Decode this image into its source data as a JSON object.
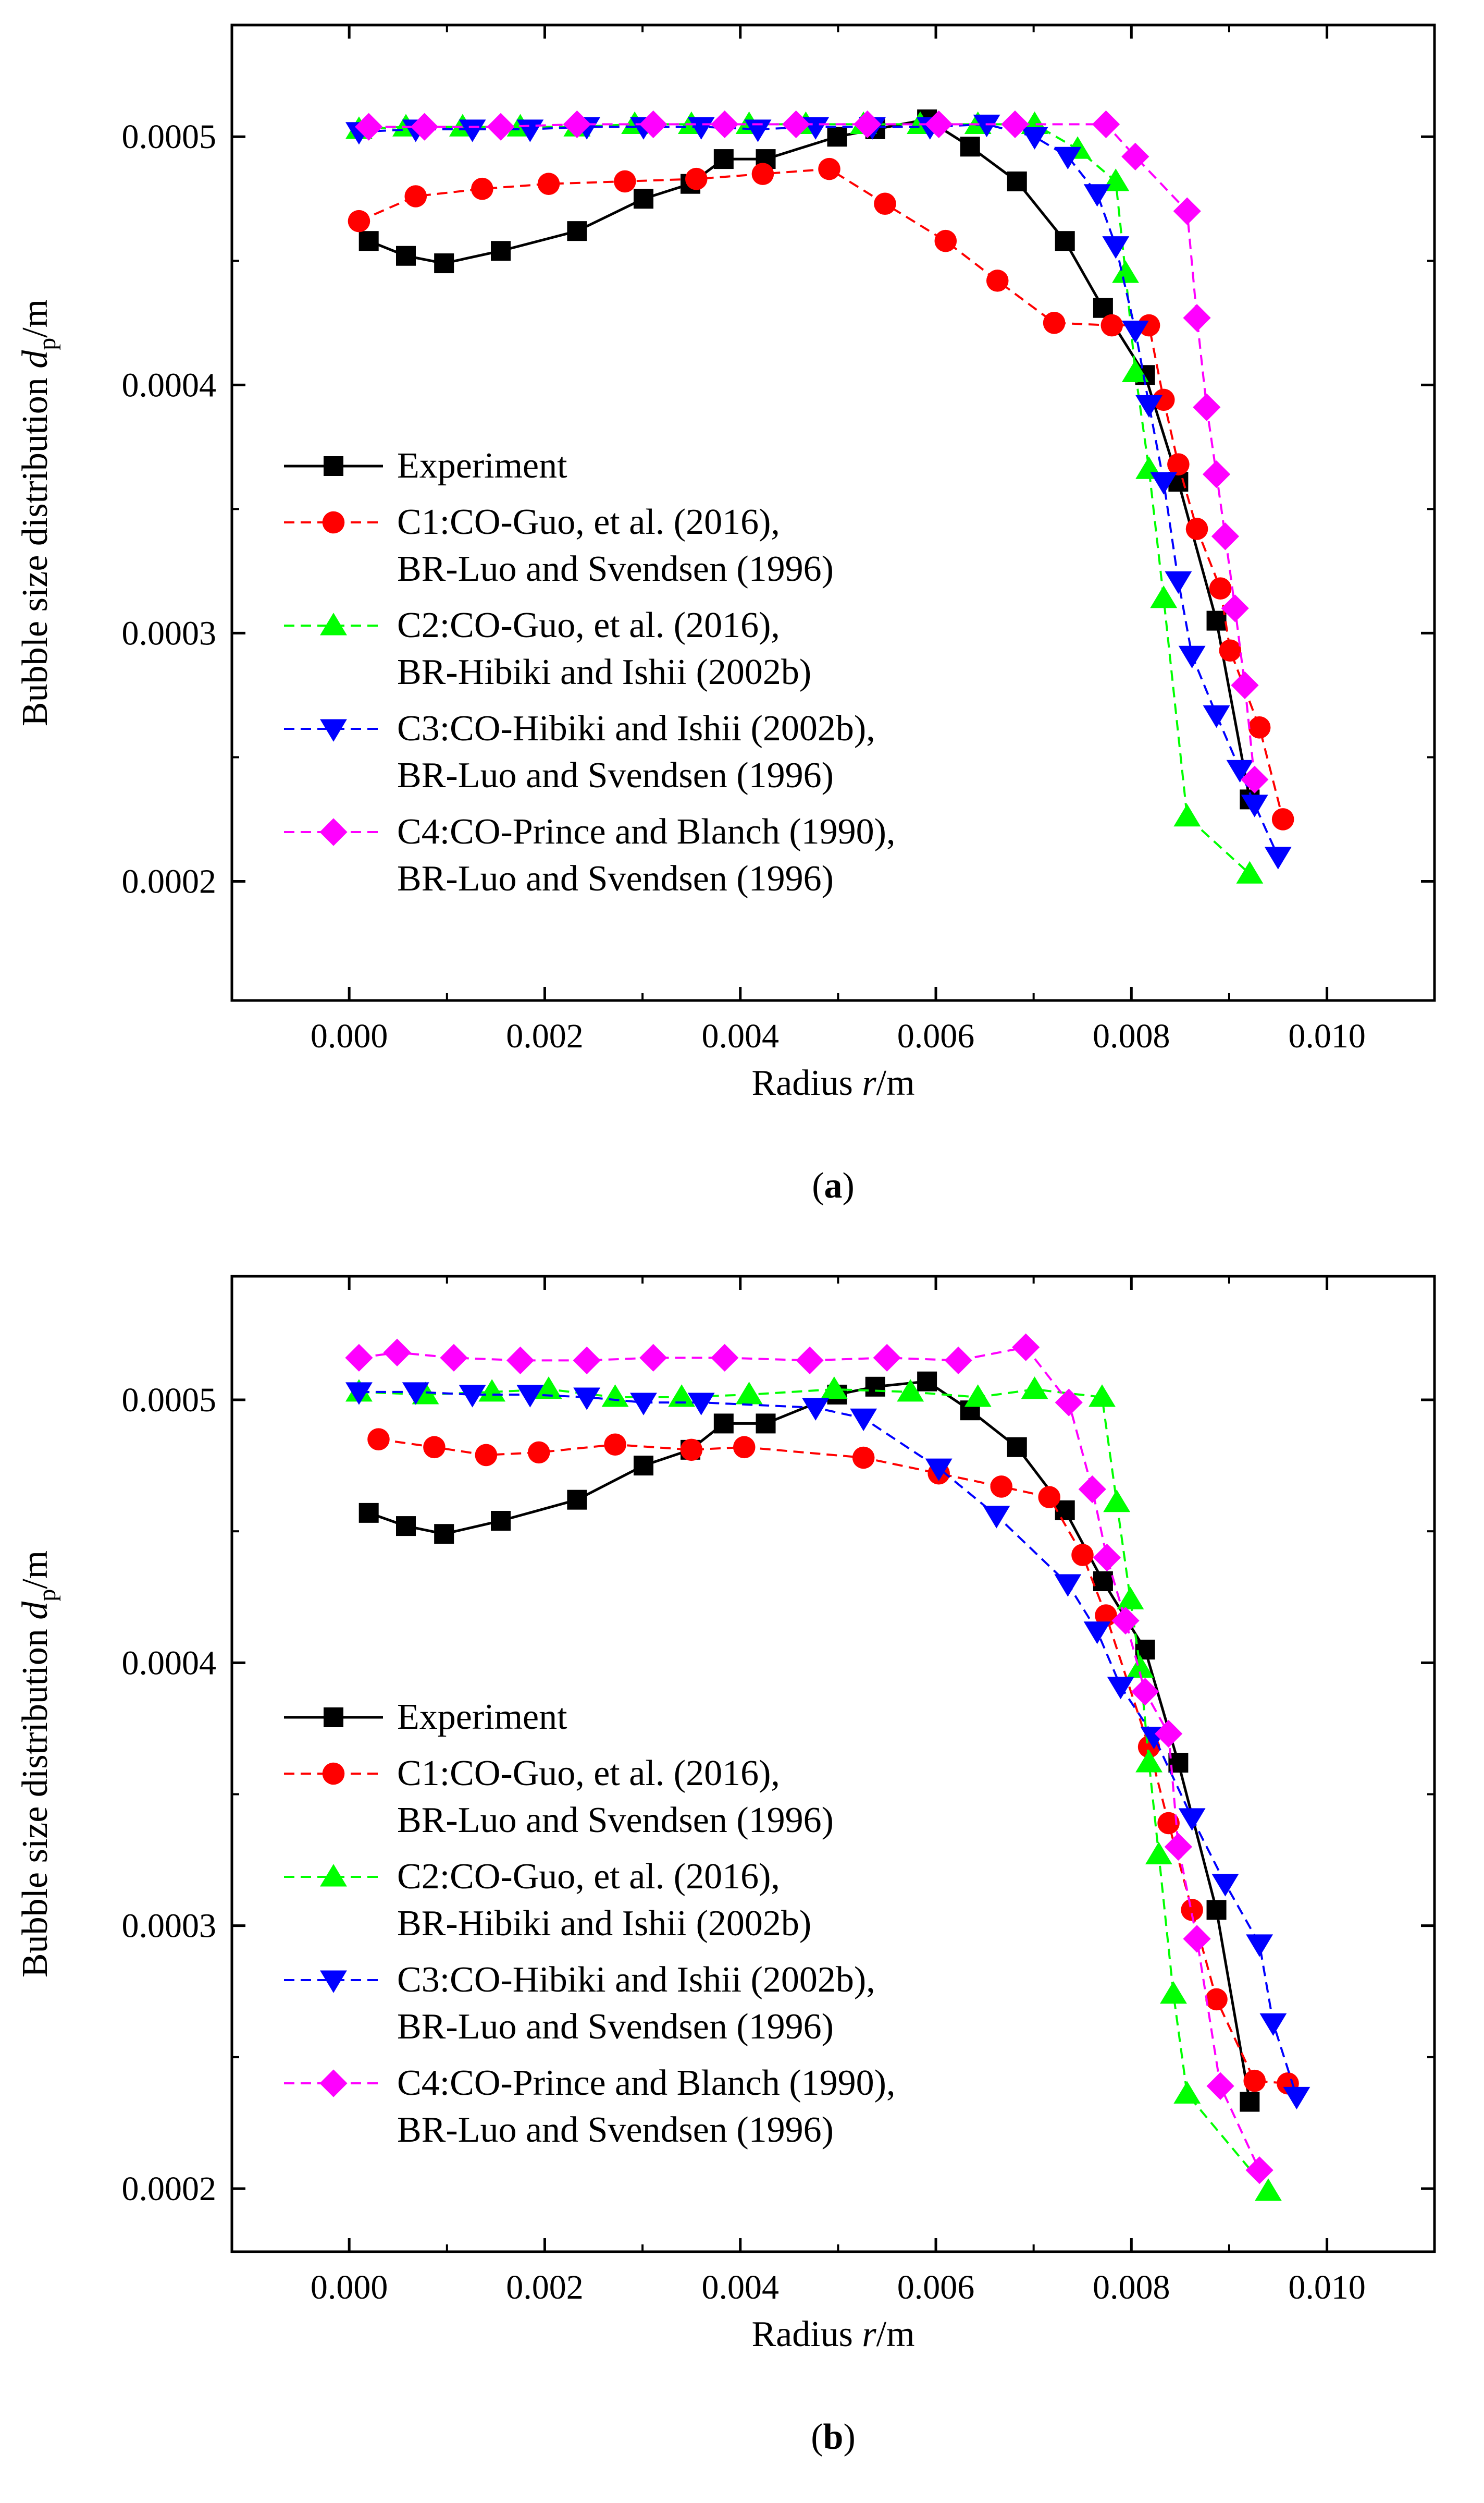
{
  "chart_data": [
    {
      "type": "line",
      "panel_label": "a",
      "xlabel_prefix": "Radius ",
      "xlabel_var": "r",
      "xlabel_unit": "/m",
      "ylabel_prefix": "Bubble size distribution ",
      "ylabel_var": "d",
      "ylabel_sub": "p",
      "ylabel_unit": "/m",
      "xlim": [
        -0.0012,
        0.0111
      ],
      "ylim": [
        0.000152,
        0.000545
      ],
      "xticks": [
        0.0,
        0.002,
        0.004,
        0.006,
        0.008,
        0.01
      ],
      "xtick_labels": [
        "0.000",
        "0.002",
        "0.004",
        "0.006",
        "0.008",
        "0.010"
      ],
      "yticks": [
        0.0002,
        0.0003,
        0.0004,
        0.0005
      ],
      "ytick_labels": [
        "0.0002",
        "0.0003",
        "0.0004",
        "0.0005"
      ],
      "series": [
        {
          "name": "Experiment",
          "name2": "",
          "color": "#000000",
          "marker": "square",
          "dash": false,
          "x": [
            0.0002,
            0.00058,
            0.00097,
            0.00155,
            0.00233,
            0.00301,
            0.00349,
            0.00383,
            0.00426,
            0.00499,
            0.00538,
            0.00591,
            0.00635,
            0.00683,
            0.00732,
            0.00771,
            0.00814,
            0.00848,
            0.00887,
            0.00921
          ],
          "y": [
            0.000458,
            0.000452,
            0.000449,
            0.000454,
            0.000462,
            0.000475,
            0.000481,
            0.000491,
            0.000491,
            0.0005,
            0.000503,
            0.000507,
            0.000496,
            0.000482,
            0.000458,
            0.000431,
            0.000404,
            0.000361,
            0.000305,
            0.000233
          ]
        },
        {
          "name": "C1:CO-Guo, et al. (2016),",
          "name2": "BR-Luo and Svendsen (1996)",
          "color": "#ff0000",
          "marker": "circle",
          "dash": true,
          "x": [
            0.0001,
            0.00068,
            0.00136,
            0.00204,
            0.00282,
            0.00355,
            0.00423,
            0.00491,
            0.00548,
            0.0061,
            0.00663,
            0.00721,
            0.0078,
            0.00818,
            0.00833,
            0.00848,
            0.00867,
            0.00891,
            0.00901,
            0.00931,
            0.00955
          ],
          "y": [
            0.000466,
            0.000476,
            0.000479,
            0.000481,
            0.000482,
            0.000483,
            0.000485,
            0.000487,
            0.000473,
            0.000458,
            0.000442,
            0.000425,
            0.000424,
            0.000424,
            0.000394,
            0.000368,
            0.000342,
            0.000318,
            0.000293,
            0.000262,
            0.000225
          ]
        },
        {
          "name": "C2:CO-Guo, et al. (2016),",
          "name2": "BR-Hibiki and Ishii (2002b)",
          "color": "#00ff00",
          "marker": "triangle-up",
          "dash": true,
          "x": [
            0.0001,
            0.00058,
            0.00116,
            0.00175,
            0.00233,
            0.00292,
            0.0035,
            0.00409,
            0.00467,
            0.00526,
            0.00584,
            0.00643,
            0.00701,
            0.00745,
            0.00784,
            0.00794,
            0.00804,
            0.00818,
            0.00833,
            0.00857,
            0.00921
          ],
          "y": [
            0.000503,
            0.000504,
            0.000504,
            0.000504,
            0.000504,
            0.000505,
            0.000505,
            0.000505,
            0.000505,
            0.000505,
            0.000505,
            0.000505,
            0.000505,
            0.000495,
            0.000482,
            0.000445,
            0.000405,
            0.000366,
            0.000314,
            0.000226,
            0.000203
          ]
        },
        {
          "name": "C3:CO-Hibiki and Ishii (2002b),",
          "name2": "BR-Luo and Svendsen (1996)",
          "color": "#0000ff",
          "marker": "triangle-down",
          "dash": true,
          "x": [
            0.0001,
            0.00068,
            0.00126,
            0.00185,
            0.00243,
            0.00301,
            0.0036,
            0.00418,
            0.00477,
            0.00535,
            0.00594,
            0.00652,
            0.00701,
            0.00735,
            0.00765,
            0.00784,
            0.00804,
            0.00818,
            0.00833,
            0.00848,
            0.00862,
            0.00887,
            0.00911,
            0.00926,
            0.0095
          ],
          "y": [
            0.000502,
            0.000503,
            0.000503,
            0.000503,
            0.000504,
            0.000504,
            0.000504,
            0.000503,
            0.000504,
            0.000504,
            0.000504,
            0.000505,
            0.0005,
            0.000492,
            0.000477,
            0.000456,
            0.000422,
            0.000392,
            0.000361,
            0.000321,
            0.000291,
            0.000267,
            0.000245,
            0.000231,
            0.00021
          ]
        },
        {
          "name": "C4:CO-Prince and Blanch (1990),",
          "name2": "BR-Luo and Svendsen (1996)",
          "color": "#ff00ff",
          "marker": "diamond",
          "dash": true,
          "x": [
            0.0002,
            0.00077,
            0.00155,
            0.00233,
            0.00311,
            0.00384,
            0.00457,
            0.0053,
            0.00603,
            0.00681,
            0.00774,
            0.00804,
            0.00857,
            0.00867,
            0.00877,
            0.00887,
            0.00896,
            0.00906,
            0.00916,
            0.00926
          ],
          "y": [
            0.000504,
            0.000504,
            0.000504,
            0.000505,
            0.000505,
            0.000505,
            0.000505,
            0.000505,
            0.000505,
            0.000505,
            0.000505,
            0.000492,
            0.00047,
            0.000427,
            0.000391,
            0.000364,
            0.000339,
            0.00031,
            0.000279,
            0.000241
          ]
        }
      ]
    },
    {
      "type": "line",
      "panel_label": "b",
      "xlabel_prefix": "Radius ",
      "xlabel_var": "r",
      "xlabel_unit": "/m",
      "ylabel_prefix": "Bubble size distribution ",
      "ylabel_var": "d",
      "ylabel_sub": "p",
      "ylabel_unit": "/m",
      "xlim": [
        -0.0012,
        0.0111
      ],
      "ylim": [
        0.000176,
        0.000547
      ],
      "xticks": [
        0.0,
        0.002,
        0.004,
        0.006,
        0.008,
        0.01
      ],
      "xtick_labels": [
        "0.000",
        "0.002",
        "0.004",
        "0.006",
        "0.008",
        "0.010"
      ],
      "yticks": [
        0.0002,
        0.0003,
        0.0004,
        0.0005
      ],
      "ytick_labels": [
        "0.0002",
        "0.0003",
        "0.0004",
        "0.0005"
      ],
      "series": [
        {
          "name": "Experiment",
          "name2": "",
          "color": "#000000",
          "marker": "square",
          "dash": false,
          "x": [
            0.0002,
            0.00058,
            0.00097,
            0.00155,
            0.00233,
            0.00301,
            0.00349,
            0.00383,
            0.00426,
            0.00499,
            0.00538,
            0.00591,
            0.00635,
            0.00683,
            0.00732,
            0.00771,
            0.00814,
            0.00848,
            0.00887,
            0.00921
          ],
          "y": [
            0.000457,
            0.000452,
            0.000449,
            0.000454,
            0.000462,
            0.000475,
            0.000481,
            0.000491,
            0.000491,
            0.000502,
            0.000505,
            0.000507,
            0.000496,
            0.000482,
            0.000458,
            0.000431,
            0.000405,
            0.000362,
            0.000306,
            0.000233
          ]
        },
        {
          "name": "C1:CO-Guo, et al. (2016),",
          "name2": "BR-Luo and Svendsen (1996)",
          "color": "#ff0000",
          "marker": "circle",
          "dash": true,
          "x": [
            0.0003,
            0.00087,
            0.0014,
            0.00194,
            0.00272,
            0.0035,
            0.00404,
            0.00526,
            0.00603,
            0.00667,
            0.00716,
            0.0075,
            0.00774,
            0.00818,
            0.00838,
            0.00862,
            0.00887,
            0.00926,
            0.0096
          ],
          "y": [
            0.000485,
            0.000482,
            0.000479,
            0.00048,
            0.000483,
            0.000481,
            0.000482,
            0.000478,
            0.000472,
            0.000467,
            0.000463,
            0.000441,
            0.000418,
            0.000368,
            0.000339,
            0.000306,
            0.000272,
            0.000241,
            0.00024
          ]
        },
        {
          "name": "C2:CO-Guo, et al. (2016),",
          "name2": "BR-Hibiki and Ishii (2002b)",
          "color": "#00ff00",
          "marker": "triangle-up",
          "dash": true,
          "x": [
            0.0001,
            0.00078,
            0.00146,
            0.00204,
            0.00272,
            0.0034,
            0.00409,
            0.00496,
            0.00574,
            0.00643,
            0.00701,
            0.0077,
            0.00785,
            0.00799,
            0.00809,
            0.00818,
            0.00828,
            0.00843,
            0.00857,
            0.0094
          ],
          "y": [
            0.000503,
            0.000502,
            0.000503,
            0.000504,
            0.000501,
            0.000501,
            0.000502,
            0.000504,
            0.000503,
            0.000501,
            0.000504,
            0.000501,
            0.000461,
            0.000424,
            0.000398,
            0.000362,
            0.000327,
            0.000274,
            0.000236,
            0.000199
          ]
        },
        {
          "name": "C3:CO-Hibiki and Ishii (2002b),",
          "name2": "BR-Luo and Svendsen (1996)",
          "color": "#0000ff",
          "marker": "triangle-down",
          "dash": true,
          "x": [
            0.0001,
            0.00068,
            0.00126,
            0.00185,
            0.00243,
            0.00301,
            0.0036,
            0.00477,
            0.00526,
            0.00603,
            0.00662,
            0.00735,
            0.00765,
            0.00789,
            0.00823,
            0.00862,
            0.00896,
            0.00931,
            0.00945,
            0.00969
          ],
          "y": [
            0.000503,
            0.000503,
            0.000502,
            0.000502,
            0.000501,
            0.000499,
            0.000499,
            0.000497,
            0.000493,
            0.000474,
            0.000456,
            0.00043,
            0.000412,
            0.000391,
            0.000372,
            0.000341,
            0.000316,
            0.000293,
            0.000263,
            0.000235
          ]
        },
        {
          "name": "C4:CO-Prince and Blanch (1990),",
          "name2": "BR-Luo and Svendsen (1996)",
          "color": "#ff00ff",
          "marker": "diamond",
          "dash": true,
          "x": [
            0.0001,
            0.00049,
            0.00107,
            0.00175,
            0.00243,
            0.00311,
            0.00384,
            0.00471,
            0.0055,
            0.00623,
            0.00692,
            0.00736,
            0.0076,
            0.00775,
            0.00794,
            0.00814,
            0.00838,
            0.00848,
            0.00867,
            0.00891,
            0.00931
          ],
          "y": [
            0.000516,
            0.000518,
            0.000516,
            0.000515,
            0.000515,
            0.000516,
            0.000516,
            0.000515,
            0.000516,
            0.000515,
            0.00052,
            0.000499,
            0.000466,
            0.00044,
            0.000416,
            0.000389,
            0.000373,
            0.00033,
            0.000295,
            0.000239,
            0.000207
          ]
        }
      ]
    }
  ]
}
